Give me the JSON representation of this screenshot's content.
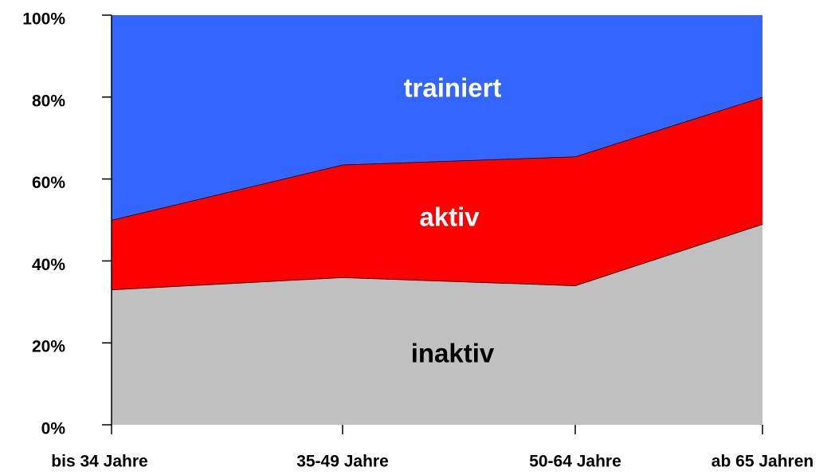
{
  "chart_data": {
    "type": "stacked_area",
    "categories": [
      "bis 34 Jahre",
      "35-49 Jahre",
      "50-64 Jahre",
      "ab 65 Jahren"
    ],
    "series": [
      {
        "name": "inaktiv",
        "color": "#c0c0c0",
        "label_color": "#000000",
        "values": [
          33,
          36,
          34,
          49
        ]
      },
      {
        "name": "aktiv",
        "color": "#ff0000",
        "label_color": "#ffffff",
        "values": [
          17,
          27.5,
          31.5,
          31
        ]
      },
      {
        "name": "trainiert",
        "color": "#3366ff",
        "label_color": "#ffffff",
        "values": [
          50,
          36.5,
          34.5,
          20
        ]
      }
    ],
    "ylim": [
      0,
      100
    ],
    "yticks": [
      {
        "value": 0,
        "label": "0%"
      },
      {
        "value": 20,
        "label": "20%"
      },
      {
        "value": 40,
        "label": "40%"
      },
      {
        "value": 60,
        "label": "60%"
      },
      {
        "value": 80,
        "label": "80%"
      },
      {
        "value": 100,
        "label": "100%"
      }
    ]
  }
}
